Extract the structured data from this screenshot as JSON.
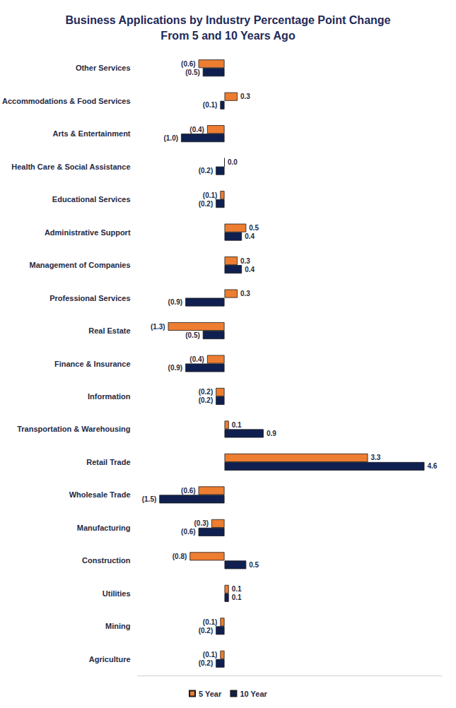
{
  "chart_data": {
    "type": "bar",
    "orientation": "horizontal",
    "title": "Business Applications by Industry Percentage Point Change\nFrom 5 and 10 Years Ago",
    "categories": [
      "Other Services",
      "Accommodations & Food Services",
      "Arts & Entertainment",
      "Health Care & Social Assistance",
      "Educational Services",
      "Administrative Support",
      "Management of Companies",
      "Professional Services",
      "Real Estate",
      "Finance & Insurance",
      "Information",
      "Transportation & Warehousing",
      "Retail Trade",
      "Wholesale Trade",
      "Manufacturing",
      "Construction",
      "Utilities",
      "Mining",
      "Agriculture"
    ],
    "series": [
      {
        "name": "5 Year",
        "color": "#ed7d31",
        "values": [
          -0.6,
          0.3,
          -0.4,
          0.0,
          -0.1,
          0.5,
          0.3,
          0.3,
          -1.3,
          -0.4,
          -0.2,
          0.1,
          3.3,
          -0.6,
          -0.3,
          -0.8,
          0.1,
          -0.1,
          -0.1
        ],
        "value_labels": [
          "(0.6)",
          "0.3",
          "(0.4)",
          "0.0",
          "(0.1)",
          "0.5",
          "0.3",
          "0.3",
          "(1.3)",
          "(0.4)",
          "(0.2)",
          "0.1",
          "3.3",
          "(0.6)",
          "(0.3)",
          "(0.8)",
          "0.1",
          "(0.1)",
          "(0.1)"
        ]
      },
      {
        "name": "10 Year",
        "color": "#0f2050",
        "values": [
          -0.5,
          -0.1,
          -1.0,
          -0.2,
          -0.2,
          0.4,
          0.4,
          -0.9,
          -0.5,
          -0.9,
          -0.2,
          0.9,
          4.6,
          -1.5,
          -0.6,
          0.5,
          0.1,
          -0.2,
          -0.2
        ],
        "value_labels": [
          "(0.5)",
          "(0.1)",
          "(1.0)",
          "(0.2)",
          "(0.2)",
          "0.4",
          "0.4",
          "(0.9)",
          "(0.5)",
          "(0.9)",
          "(0.2)",
          "0.9",
          "4.6",
          "(1.5)",
          "(0.6)",
          "0.5",
          "0.1",
          "(0.2)",
          "(0.2)"
        ]
      }
    ],
    "xlim": [
      -2,
      5
    ],
    "data_labels": true,
    "tick_labels": "y",
    "legend": "bottom",
    "grid": false
  }
}
